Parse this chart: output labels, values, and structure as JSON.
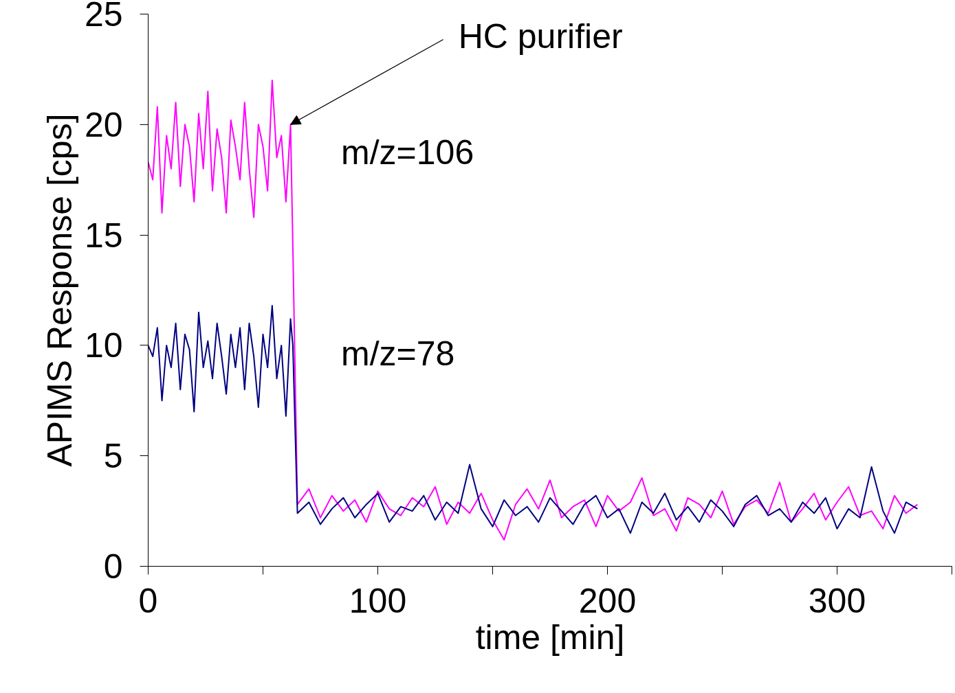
{
  "chart_data": {
    "type": "line",
    "xlabel": "time [min]",
    "ylabel": "APIMS Response [cps]",
    "x": [
      0,
      2,
      4,
      6,
      8,
      10,
      12,
      14,
      16,
      18,
      20,
      22,
      24,
      26,
      28,
      30,
      32,
      34,
      36,
      38,
      40,
      42,
      44,
      46,
      48,
      50,
      52,
      54,
      56,
      58,
      60,
      62,
      63,
      65,
      70,
      75,
      80,
      85,
      90,
      95,
      100,
      105,
      110,
      115,
      120,
      125,
      130,
      135,
      140,
      145,
      150,
      155,
      160,
      165,
      170,
      175,
      180,
      185,
      190,
      195,
      200,
      205,
      210,
      215,
      220,
      225,
      230,
      235,
      240,
      245,
      250,
      255,
      260,
      265,
      270,
      275,
      280,
      285,
      290,
      295,
      300,
      305,
      310,
      315,
      320,
      325,
      330,
      335
    ],
    "series": [
      {
        "name": "m/z=106",
        "color": "#ff00ff",
        "values": [
          18.3,
          17.5,
          20.8,
          16,
          19.5,
          18,
          21,
          17.2,
          20,
          19,
          16.5,
          20.5,
          18,
          21.5,
          17,
          19.8,
          18.5,
          16,
          20.2,
          19,
          17.5,
          21,
          18,
          15.8,
          20,
          19,
          17,
          22,
          18.5,
          19.5,
          16.5,
          20,
          14.5,
          2.8,
          3.5,
          2.2,
          3.2,
          2.5,
          3.0,
          2.0,
          3.4,
          2.6,
          2.3,
          3.1,
          2.7,
          3.6,
          1.9,
          2.9,
          2.4,
          3.3,
          2.1,
          1.2,
          2.8,
          3.5,
          2.6,
          3.9,
          2.2,
          2.7,
          3.0,
          1.8,
          3.2,
          2.5,
          2.9,
          4.0,
          2.3,
          2.6,
          1.6,
          3.1,
          2.8,
          2.2,
          3.4,
          1.9,
          2.7,
          3.0,
          2.4,
          3.8,
          2.0,
          2.6,
          3.3,
          2.1,
          2.9,
          3.6,
          2.3,
          2.5,
          1.7,
          3.2,
          2.4,
          2.8
        ]
      },
      {
        "name": "m/z=78",
        "color": "#000080",
        "values": [
          10,
          9.5,
          10.8,
          7.5,
          10,
          9,
          11,
          8,
          10.5,
          9.8,
          7,
          11.5,
          9,
          10.2,
          8.5,
          11,
          9.5,
          7.8,
          10.5,
          9,
          10.8,
          8,
          11,
          9.5,
          7.2,
          10.5,
          9,
          11.8,
          8.5,
          10,
          6.8,
          11.2,
          10,
          2.4,
          2.9,
          1.9,
          2.6,
          3.1,
          2.2,
          2.8,
          3.3,
          2.0,
          2.7,
          2.5,
          3.2,
          2.1,
          2.9,
          2.4,
          4.6,
          2.6,
          1.8,
          3.0,
          2.3,
          2.7,
          2.0,
          3.1,
          2.5,
          1.9,
          2.8,
          3.2,
          2.2,
          2.6,
          1.5,
          2.9,
          2.4,
          3.3,
          2.1,
          2.7,
          2.0,
          3.0,
          2.5,
          1.8,
          2.8,
          3.2,
          2.3,
          2.6,
          2.0,
          2.9,
          2.4,
          3.1,
          1.7,
          2.6,
          2.2,
          4.5,
          2.5,
          1.5,
          2.9,
          2.6
        ]
      }
    ],
    "xlim": [
      0,
      350
    ],
    "xticks": [
      0,
      {
        "value": 50,
        "label": null
      },
      100,
      {
        "value": 150,
        "label": null
      },
      200,
      {
        "value": 250,
        "label": null
      },
      300,
      {
        "value": 350,
        "label": null
      }
    ],
    "ylim": [
      0,
      25
    ],
    "yticks": [
      0,
      5,
      10,
      15,
      20,
      25
    ],
    "grid": false,
    "legend": false,
    "marker": "none",
    "line_style": "solid",
    "annotations": [
      {
        "text": "HC purifier",
        "x": 62,
        "y": 20
      }
    ]
  }
}
